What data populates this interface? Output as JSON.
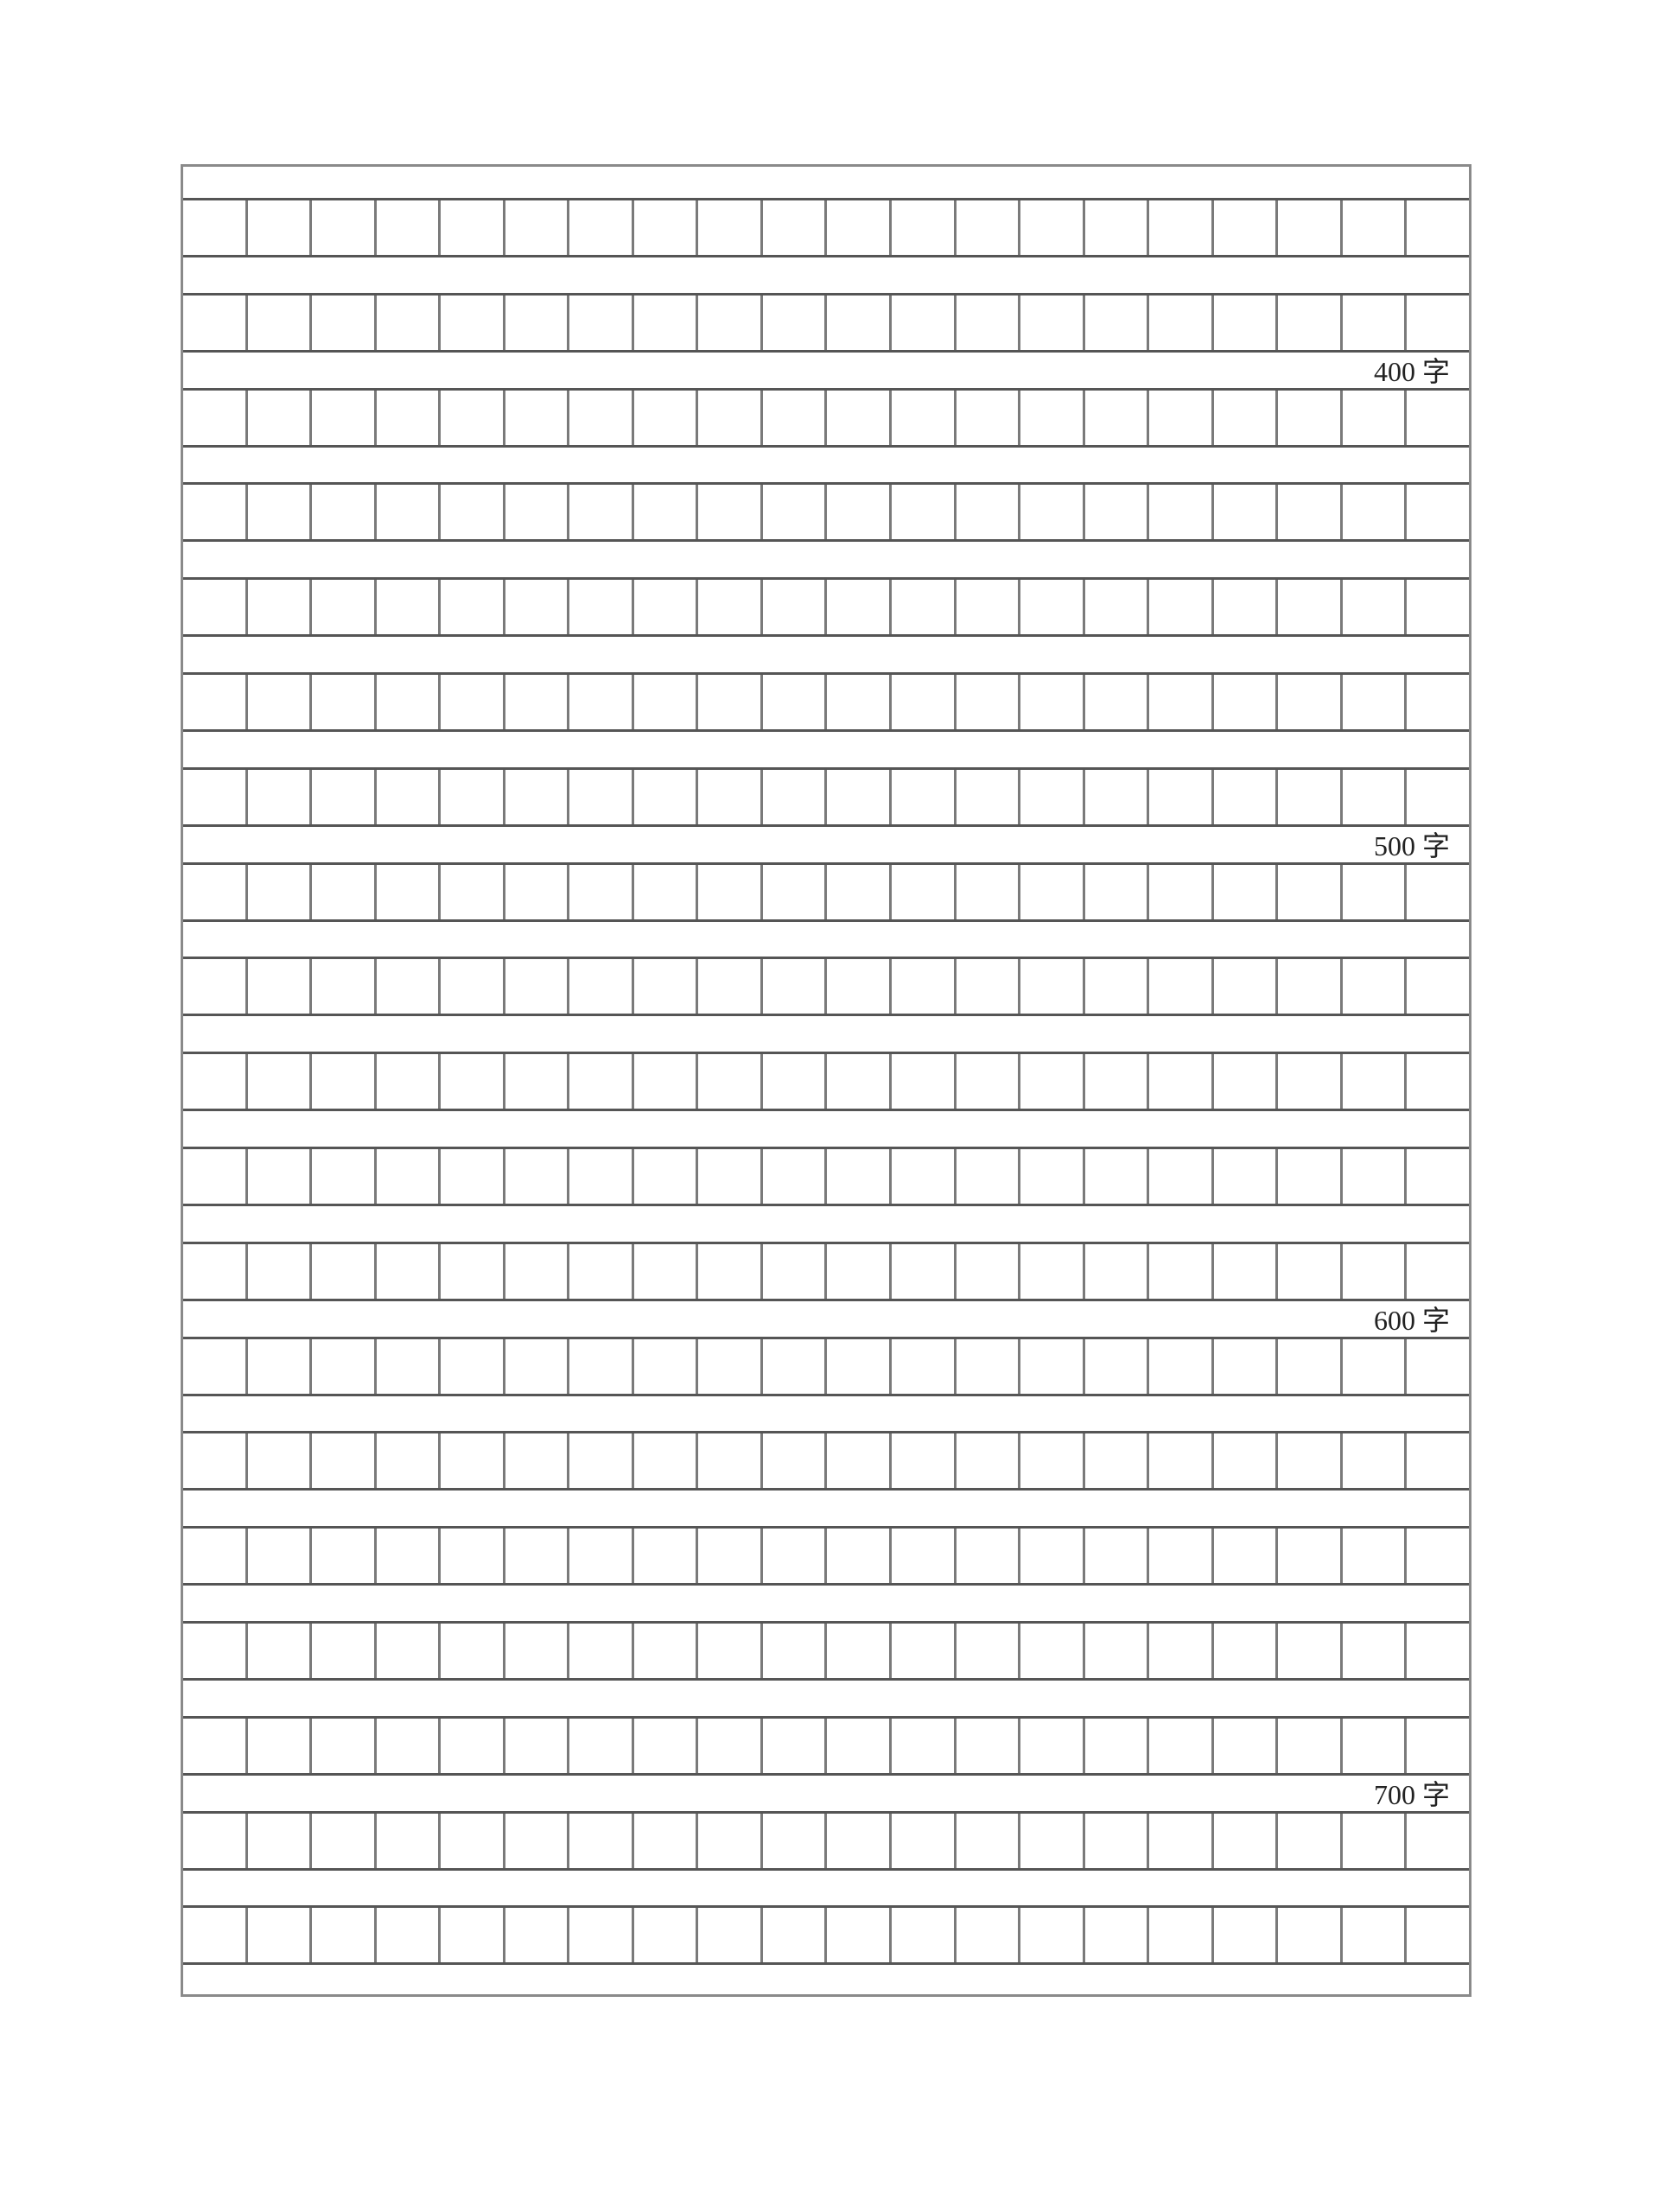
{
  "grid": {
    "rows": 19,
    "columns": 20
  },
  "markers": [
    {
      "after_row": 2,
      "text": "400 字"
    },
    {
      "after_row": 7,
      "text": "500 字"
    },
    {
      "after_row": 12,
      "text": "600 字"
    },
    {
      "after_row": 17,
      "text": "700 字"
    }
  ]
}
